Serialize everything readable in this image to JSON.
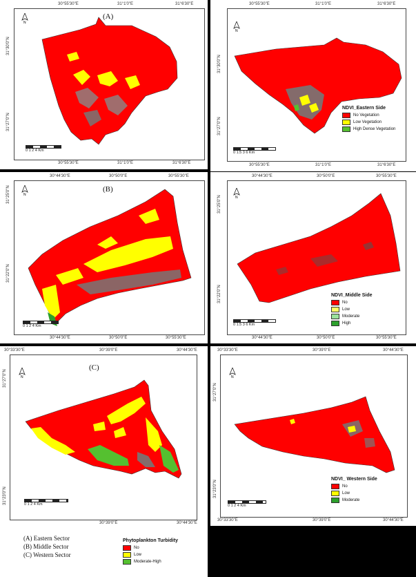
{
  "panels": {
    "a": {
      "label": "(A)",
      "top_coords": [
        "30°55'30\"E",
        "31°1'0\"E",
        "31°6'30\"E"
      ],
      "bottom_coords": [
        "30°55'30\"E",
        "31°1'0\"E",
        "31°6'30\"E"
      ],
      "side_coords": [
        "31°30'0\"N",
        "31°27'0\"N"
      ],
      "scale_ticks": "0  1  2     4 Km"
    },
    "b": {
      "label": "(B)",
      "top_coords": [
        "30°44'30\"E",
        "30°50'0\"E",
        "30°55'30\"E"
      ],
      "bottom_coords": [
        "30°44'30\"E",
        "30°50'0\"E",
        "30°55'30\"E"
      ],
      "side_coords": [
        "31°25'0\"N",
        "31°22'0\"N"
      ],
      "scale_ticks": "0  1  2     4 Km"
    },
    "c": {
      "label": "(C)",
      "top_coords": [
        "30°33'30\"E",
        "30°39'0\"E",
        "30°44'30\"E"
      ],
      "bottom_coords": [
        "30°39'0\"E",
        "30°44'30\"E"
      ],
      "side_coords": [
        "31°27'0\"N",
        "31°23'0\"N"
      ],
      "scale_ticks": "0    1    2          4 Km"
    },
    "east_ndvi": {
      "top_coords": [
        "30°55'30\"E",
        "31°1'0\"E",
        "31°6'30\"E"
      ],
      "bottom_coords": [
        "30°55'30\"E",
        "31°1'0\"E",
        "31°6'30\"E"
      ],
      "side_coords": [
        "31°30'0\"N",
        "31°27'0\"N"
      ],
      "scale_ticks": "0   1.5   3          6 Km",
      "legend_title": "NDVI_Eastern Side",
      "legend_items": [
        "No Vegetation",
        "Low Vegetation",
        "High Dense Vegetation"
      ]
    },
    "middle_ndvi": {
      "top_coords": [
        "30°44'30\"E",
        "30°50'0\"E",
        "30°55'30\"E"
      ],
      "bottom_coords": [
        "30°44'30\"E",
        "30°50'0\"E",
        "30°55'30\"E"
      ],
      "side_coords": [
        "31°25'0\"N",
        "31°22'0\"N"
      ],
      "scale_ticks": "0   1.5   3          6 Km",
      "legend_title": "NDVI_Middle Side",
      "legend_items": [
        "No",
        "Low",
        "Moderate",
        "High"
      ]
    },
    "west_ndvi": {
      "top_coords": [
        "30°33'30\"E",
        "30°39'0\"E",
        "30°44'30\"E"
      ],
      "bottom_coords": [
        "30°33'30\"E",
        "30°39'0\"E",
        "30°44'30\"E"
      ],
      "side_coords": [
        "31°27'0\"N",
        "31°23'0\"N"
      ],
      "scale_ticks": "0   1   2        4 Km",
      "legend_title": "NDVI_ Western Side",
      "legend_items": [
        "No",
        "Low",
        "Moderate"
      ]
    }
  },
  "bottom_legend": {
    "sectors": [
      "(A) Eastern Sector",
      "(B) Middle Sector",
      "(C) Western Sector"
    ],
    "title": "Phytoplankton Turbidity",
    "items": [
      "No",
      "Low",
      "Moderate-High"
    ]
  },
  "colors": {
    "no": "#ff0000",
    "low": "#ffff00",
    "moderate": "#9be39b",
    "high": "#2ca02c",
    "moderate_high": "#55c030"
  }
}
